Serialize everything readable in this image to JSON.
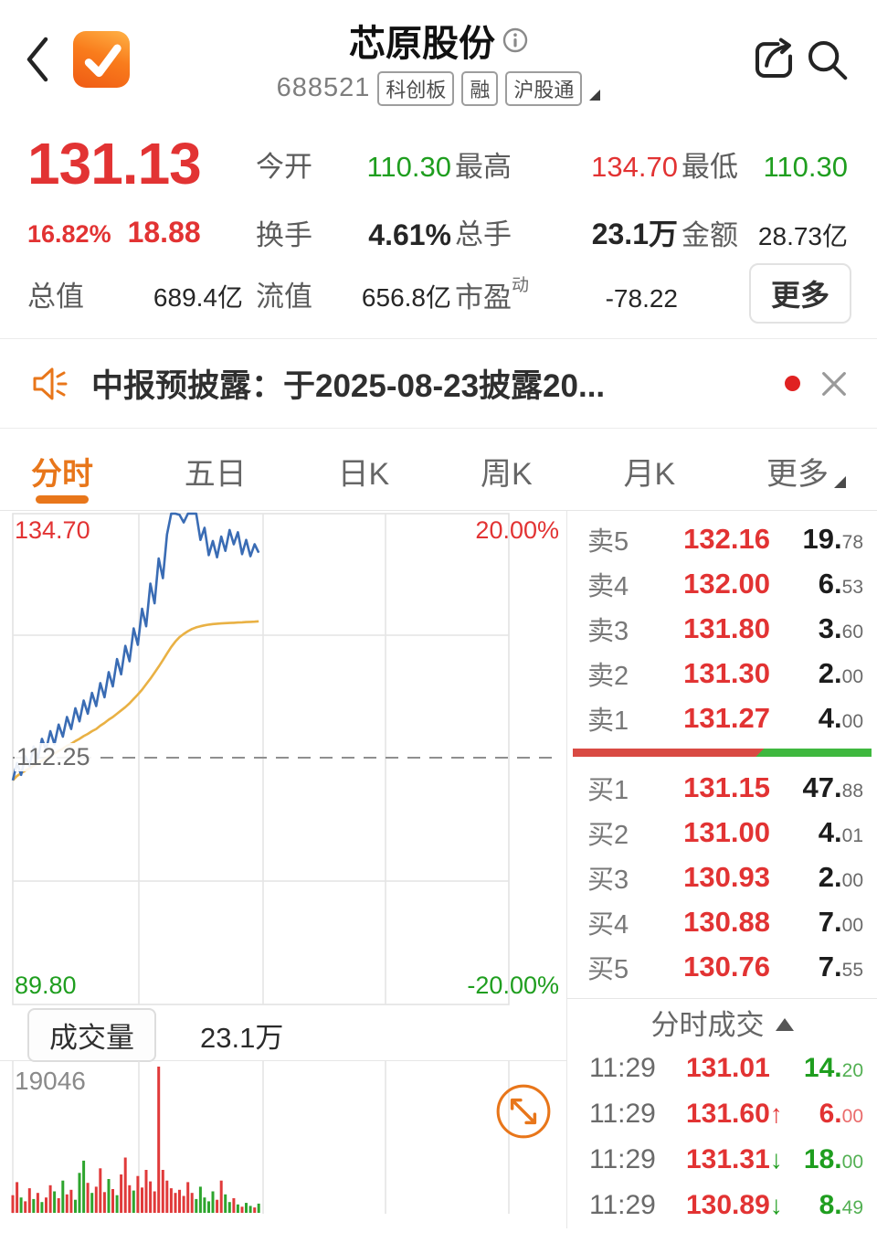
{
  "header": {
    "title": "芯原股份",
    "code": "688521",
    "badges": [
      "科创板",
      "融",
      "沪股通"
    ]
  },
  "quote": {
    "price": "131.13",
    "change_pct": "16.82%",
    "change_val": "18.88",
    "open_label": "今开",
    "open": "110.30",
    "high_label": "最高",
    "high": "134.70",
    "low_label": "最低",
    "low": "110.30",
    "turnover_label": "换手",
    "turnover": "4.61%",
    "volume_label": "总手",
    "volume": "23.1万",
    "amount_label": "金额",
    "amount": "28.73亿",
    "mktcap_label": "总值",
    "mktcap": "689.4亿",
    "float_label": "流值",
    "float": "656.8亿",
    "pe_label": "市盈",
    "pe_sup": "动",
    "pe": "-78.22",
    "more_label": "更多"
  },
  "announcement": {
    "text": "中报预披露：于2025-08-23披露20..."
  },
  "tabs": {
    "active_index": 0,
    "items": [
      {
        "label": "分时"
      },
      {
        "label": "五日"
      },
      {
        "label": "日K"
      },
      {
        "label": "周K"
      },
      {
        "label": "月K"
      },
      {
        "label": "更多",
        "caret": true
      }
    ]
  },
  "order_book": {
    "sells": [
      [
        "卖5",
        "132.16",
        "19",
        "78"
      ],
      [
        "卖4",
        "132.00",
        "6",
        "53"
      ],
      [
        "卖3",
        "131.80",
        "3",
        "60"
      ],
      [
        "卖2",
        "131.30",
        "2",
        "00"
      ],
      [
        "卖1",
        "131.27",
        "4",
        "00"
      ]
    ],
    "buys": [
      [
        "买1",
        "131.15",
        "47",
        "88"
      ],
      [
        "买2",
        "131.00",
        "4",
        "01"
      ],
      [
        "买3",
        "130.93",
        "2",
        "00"
      ],
      [
        "买4",
        "130.88",
        "7",
        "00"
      ],
      [
        "买5",
        "130.76",
        "7",
        "55"
      ]
    ],
    "depth_red_pct": 64
  },
  "ticks": {
    "title": "分时成交",
    "rows": [
      [
        "11:29",
        "131.01",
        "",
        "g",
        "14",
        "20"
      ],
      [
        "11:29",
        "131.60",
        "up",
        "r",
        "6",
        "00"
      ],
      [
        "11:29",
        "131.31",
        "down",
        "g",
        "18",
        "00"
      ],
      [
        "11:29",
        "130.89",
        "down",
        "g",
        "8",
        "49"
      ]
    ]
  },
  "chart_data": [
    {
      "type": "line",
      "title": "分时走势",
      "ylim": [
        89.8,
        134.7
      ],
      "prev_close": 112.25,
      "total_minutes": 240,
      "minutes_elapsed": 119,
      "labels": {
        "high": "134.70",
        "high_pct": "20.00%",
        "mid": "112.25",
        "low": "89.80",
        "low_pct": "-20.00%"
      },
      "series": [
        {
          "name": "price",
          "values": [
            110.3,
            111.9,
            110.8,
            112.5,
            111.6,
            113.4,
            112.3,
            114.1,
            113.1,
            114.8,
            113.6,
            115.4,
            114.3,
            116.1,
            115.0,
            116.9,
            115.7,
            117.6,
            116.4,
            118.3,
            117.1,
            119.2,
            117.9,
            120.2,
            118.9,
            121.4,
            120.0,
            122.6,
            121.2,
            124.2,
            122.7,
            126.0,
            124.4,
            128.3,
            126.5,
            130.6,
            128.8,
            132.8,
            134.7,
            134.7,
            134.6,
            133.9,
            134.7,
            134.7,
            134.7,
            132.3,
            133.4,
            130.9,
            132.2,
            130.7,
            132.6,
            131.3,
            133.2,
            131.9,
            133.0,
            131.0,
            132.3,
            130.8,
            131.9,
            131.13
          ]
        },
        {
          "name": "avg",
          "values": [
            110.3,
            110.7,
            110.95,
            111.2,
            111.4,
            111.65,
            111.85,
            112.1,
            112.3,
            112.55,
            112.75,
            113.0,
            113.2,
            113.45,
            113.65,
            113.9,
            114.1,
            114.35,
            114.55,
            114.8,
            115.0,
            115.3,
            115.55,
            115.85,
            116.1,
            116.4,
            116.7,
            117.0,
            117.35,
            117.75,
            118.15,
            118.6,
            119.1,
            119.6,
            120.15,
            120.7,
            121.3,
            121.9,
            122.5,
            123.0,
            123.4,
            123.7,
            123.95,
            124.15,
            124.3,
            124.4,
            124.48,
            124.55,
            124.6,
            124.63,
            124.66,
            124.68,
            124.7,
            124.72,
            124.74,
            124.76,
            124.78,
            124.8,
            124.82,
            124.85
          ]
        }
      ]
    },
    {
      "type": "bar",
      "title": "成交量",
      "panel_label": "成交量",
      "total_label": "23.1万",
      "ymax": 19046,
      "max_label": "19046",
      "total_minutes": 240,
      "minutes_elapsed": 119,
      "bars": [
        [
          2300,
          "r"
        ],
        [
          4000,
          "r"
        ],
        [
          2000,
          "g"
        ],
        [
          1500,
          "r"
        ],
        [
          3200,
          "r"
        ],
        [
          1800,
          "g"
        ],
        [
          2600,
          "r"
        ],
        [
          1400,
          "g"
        ],
        [
          2000,
          "r"
        ],
        [
          3600,
          "r"
        ],
        [
          2800,
          "g"
        ],
        [
          1900,
          "r"
        ],
        [
          4200,
          "g"
        ],
        [
          2400,
          "r"
        ],
        [
          3000,
          "r"
        ],
        [
          1700,
          "g"
        ],
        [
          5200,
          "g"
        ],
        [
          6800,
          "g"
        ],
        [
          3900,
          "r"
        ],
        [
          2600,
          "g"
        ],
        [
          3400,
          "r"
        ],
        [
          5800,
          "r"
        ],
        [
          2700,
          "r"
        ],
        [
          4400,
          "g"
        ],
        [
          3100,
          "r"
        ],
        [
          2300,
          "g"
        ],
        [
          5000,
          "r"
        ],
        [
          7200,
          "r"
        ],
        [
          3600,
          "r"
        ],
        [
          2900,
          "g"
        ],
        [
          4800,
          "r"
        ],
        [
          3300,
          "r"
        ],
        [
          5600,
          "r"
        ],
        [
          4100,
          "r"
        ],
        [
          2800,
          "r"
        ],
        [
          19046,
          "r"
        ],
        [
          5600,
          "r"
        ],
        [
          4200,
          "r"
        ],
        [
          3200,
          "r"
        ],
        [
          2600,
          "r"
        ],
        [
          3000,
          "r"
        ],
        [
          2200,
          "r"
        ],
        [
          4000,
          "r"
        ],
        [
          2600,
          "r"
        ],
        [
          1800,
          "g"
        ],
        [
          3400,
          "g"
        ],
        [
          2000,
          "g"
        ],
        [
          1500,
          "g"
        ],
        [
          2800,
          "g"
        ],
        [
          1700,
          "r"
        ],
        [
          4200,
          "r"
        ],
        [
          2400,
          "g"
        ],
        [
          1400,
          "g"
        ],
        [
          1900,
          "r"
        ],
        [
          1100,
          "g"
        ],
        [
          800,
          "r"
        ],
        [
          1300,
          "g"
        ],
        [
          900,
          "g"
        ],
        [
          700,
          "r"
        ],
        [
          1200,
          "g"
        ]
      ]
    }
  ],
  "colors": {
    "red": "#e23333",
    "green": "#1f9e1f",
    "accent_orange": "#e8761a",
    "line_blue": "#3a6cb4",
    "line_avg": "#e9b144",
    "vol_red": "#e03a3a",
    "vol_green": "#2ea52e"
  }
}
